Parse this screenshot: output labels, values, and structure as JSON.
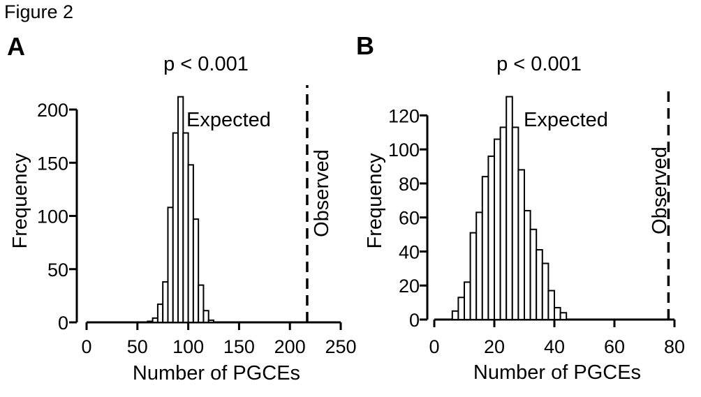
{
  "figure_title": "Figure 2",
  "chart_data": [
    {
      "type": "bar",
      "panel_label": "A",
      "annotation_top": "p < 0.001",
      "series_label": "Expected",
      "observed_label": "Observed",
      "observed_value": 217,
      "xlabel": "Number of PGCEs",
      "ylabel": "Frequency",
      "xlim": [
        0,
        250
      ],
      "ylim": [
        0,
        200
      ],
      "xticks": [
        0,
        50,
        100,
        150,
        200,
        250
      ],
      "yticks": [
        0,
        50,
        100,
        150,
        200
      ],
      "bin_width": 5,
      "bins": [
        {
          "x0": 60,
          "value": 1
        },
        {
          "x0": 65,
          "value": 4
        },
        {
          "x0": 70,
          "value": 17
        },
        {
          "x0": 75,
          "value": 38
        },
        {
          "x0": 80,
          "value": 108
        },
        {
          "x0": 85,
          "value": 178
        },
        {
          "x0": 90,
          "value": 212
        },
        {
          "x0": 95,
          "value": 178
        },
        {
          "x0": 100,
          "value": 148
        },
        {
          "x0": 105,
          "value": 97
        },
        {
          "x0": 110,
          "value": 35
        },
        {
          "x0": 115,
          "value": 11
        },
        {
          "x0": 120,
          "value": 2
        }
      ]
    },
    {
      "type": "bar",
      "panel_label": "B",
      "annotation_top": "p < 0.001",
      "series_label": "Expected",
      "observed_label": "Observed",
      "observed_value": 78,
      "xlabel": "Number of PGCEs",
      "ylabel": "Frequency",
      "xlim": [
        0,
        80
      ],
      "ylim": [
        0,
        130
      ],
      "xticks": [
        0,
        20,
        40,
        60,
        80
      ],
      "yticks": [
        0,
        20,
        40,
        60,
        80,
        100,
        120
      ],
      "bin_width": 2,
      "bins": [
        {
          "x0": 6,
          "value": 5
        },
        {
          "x0": 8,
          "value": 13
        },
        {
          "x0": 10,
          "value": 22
        },
        {
          "x0": 12,
          "value": 51
        },
        {
          "x0": 14,
          "value": 63
        },
        {
          "x0": 16,
          "value": 84
        },
        {
          "x0": 18,
          "value": 96
        },
        {
          "x0": 20,
          "value": 106
        },
        {
          "x0": 22,
          "value": 113
        },
        {
          "x0": 24,
          "value": 131
        },
        {
          "x0": 26,
          "value": 113
        },
        {
          "x0": 28,
          "value": 88
        },
        {
          "x0": 30,
          "value": 64
        },
        {
          "x0": 32,
          "value": 53
        },
        {
          "x0": 34,
          "value": 41
        },
        {
          "x0": 36,
          "value": 33
        },
        {
          "x0": 38,
          "value": 17
        },
        {
          "x0": 40,
          "value": 7
        },
        {
          "x0": 42,
          "value": 4
        }
      ]
    }
  ]
}
